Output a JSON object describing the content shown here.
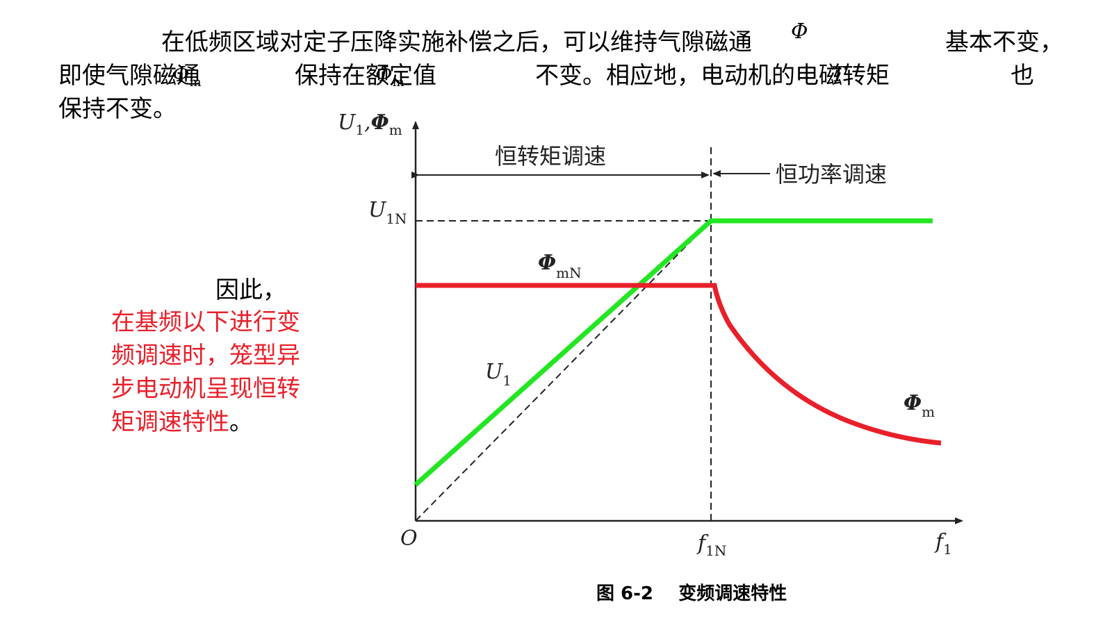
{
  "text": {
    "p1a": "在低频区域对定子压降实施补偿之后，可以维持气隙磁通",
    "p1b": "基本不变，",
    "p2a": "即使气隙磁通",
    "p2b": "保持在额定值",
    "p2c": "不变。相应地，电动机的电磁转矩",
    "p2d": "也",
    "p3": "保持不变。",
    "therefore": "因此，",
    "conclusion_red": "在基频以下进行变频调速时，笼型异步电动机呈现恒转矩调速特性",
    "conclusion_end": "。",
    "caption": "图 6-2    变频调速特性"
  },
  "symbols": {
    "phi_top": "Φ",
    "phi_m1": "Φ",
    "phi_m1_sub": "m",
    "phi_m2": "Φ",
    "phi_m2_sub": "m",
    "t": "T"
  },
  "diagram": {
    "axis_y_main": "U",
    "axis_y_sub": "1",
    "axis_y_sep": ",",
    "axis_y_phi": "Φ",
    "axis_y_phi_sub": "m",
    "axis_x_main": "f",
    "axis_x_sub": "1",
    "origin": "O",
    "f1n_main": "f",
    "f1n_sub": "1N",
    "u1n_main": "U",
    "u1n_sub": "1N",
    "phimn_main": "Φ",
    "phimn_sub": "mN",
    "u1_main": "U",
    "u1_sub": "1",
    "phim_main": "Φ",
    "phim_sub": "m",
    "region_left": "恒转矩调速",
    "region_right": "恒功率调速",
    "colors": {
      "voltage_line": "#22e622",
      "flux_line": "#e8202a",
      "axes": "#222222"
    }
  }
}
